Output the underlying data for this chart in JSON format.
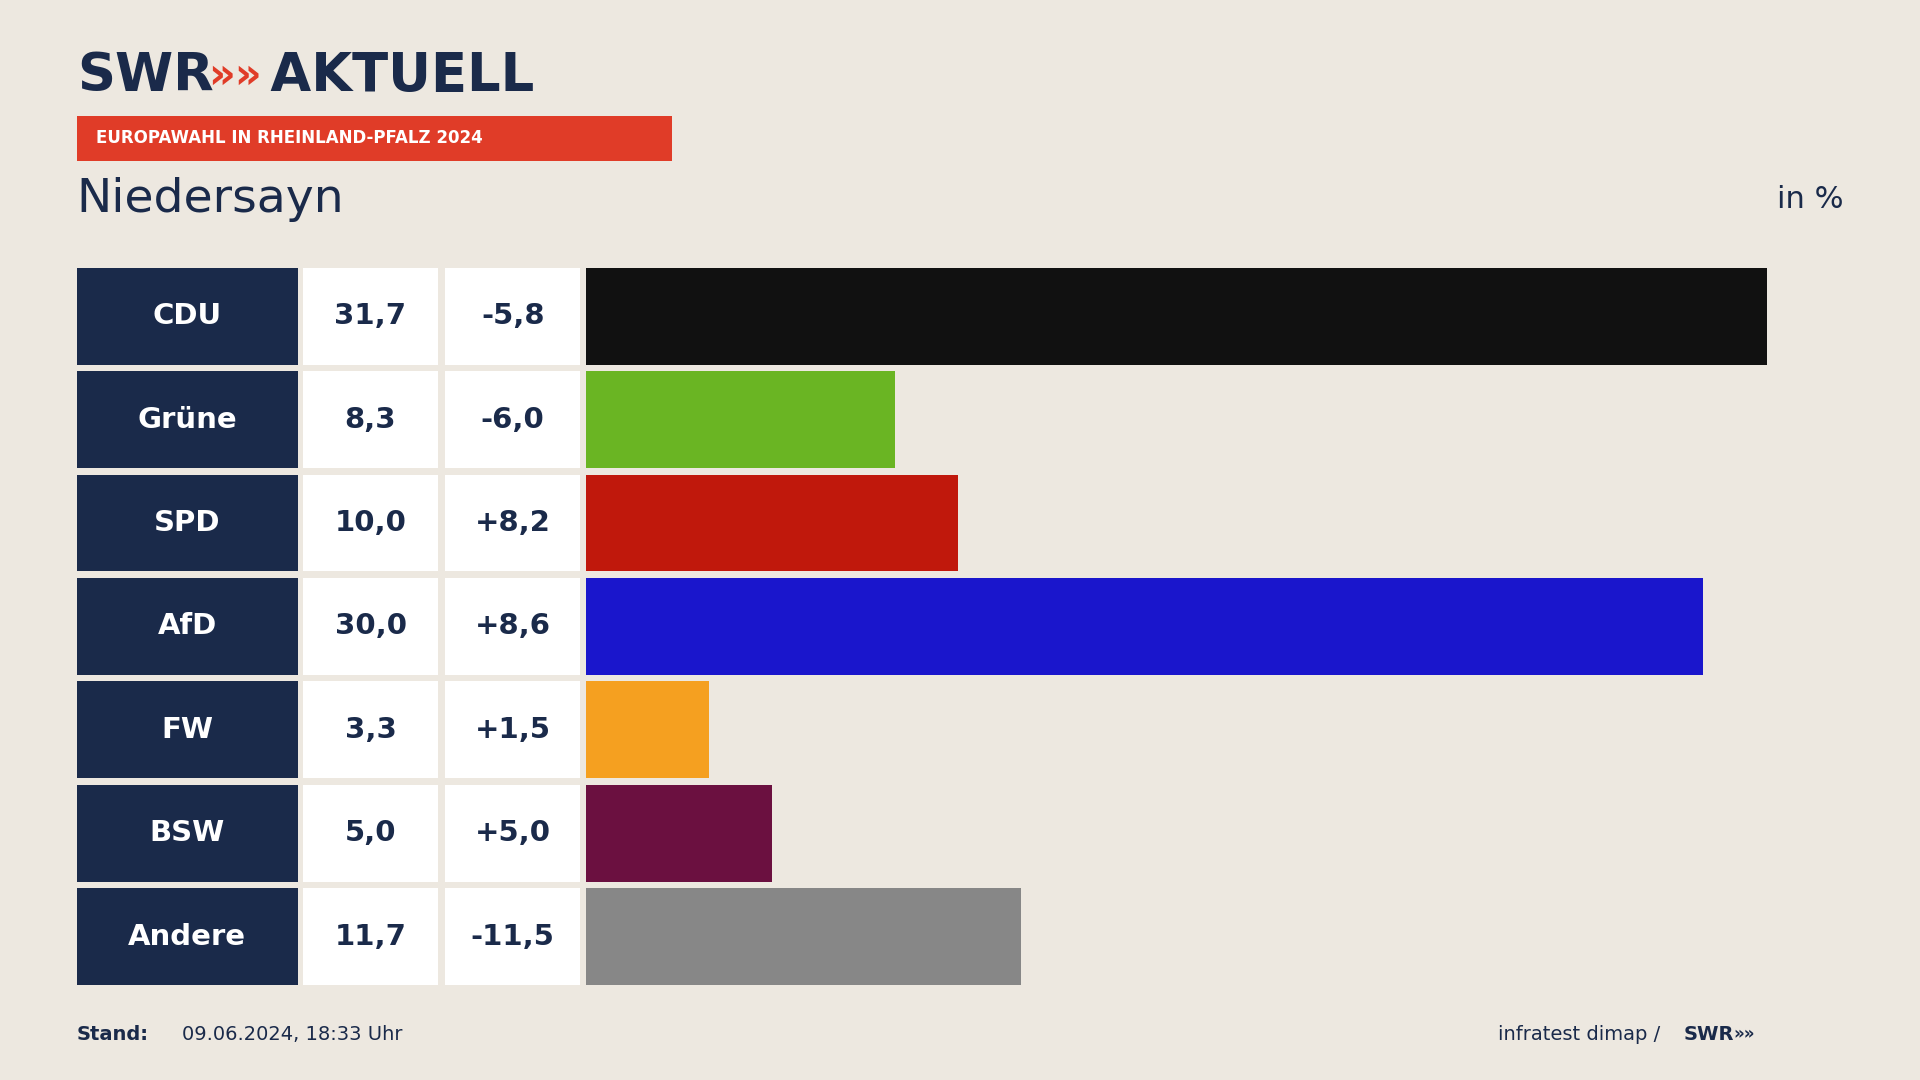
{
  "title_logo_swr": "SWR",
  "title_logo_arrows": "»»",
  "title_logo_aktuell": " AKTUELL",
  "subtitle_badge": "EUROPAWAHL IN RHEINLAND-PFALZ 2024",
  "location": "Niedersayn",
  "unit_label": "in %",
  "stand": "Stand:",
  "stand_date": "09.06.2024, 18:33 Uhr",
  "source": "infratest dimap / SWR»»",
  "background_color": "#ede8e0",
  "parties": [
    "CDU",
    "Grüne",
    "SPD",
    "AfD",
    "FW",
    "BSW",
    "Andere"
  ],
  "values": [
    31.7,
    8.3,
    10.0,
    30.0,
    3.3,
    5.0,
    11.7
  ],
  "changes": [
    "-5,8",
    "-6,0",
    "+8,2",
    "+8,6",
    "+1,5",
    "+5,0",
    "-11,5"
  ],
  "bar_colors": [
    "#111111",
    "#6ab523",
    "#c0180c",
    "#1a16cc",
    "#f5a020",
    "#6b1040",
    "#878787"
  ],
  "label_bg_color": "#1a2a4a",
  "label_text_color": "#ffffff",
  "value_bg_color": "#ffffff",
  "value_text_color": "#1a2a4a",
  "badge_bg_color": "#e03c28",
  "badge_text_color": "#ffffff",
  "logo_color": "#1a2a4a",
  "arrow_color": "#e03c28",
  "bar_max": 33.5
}
